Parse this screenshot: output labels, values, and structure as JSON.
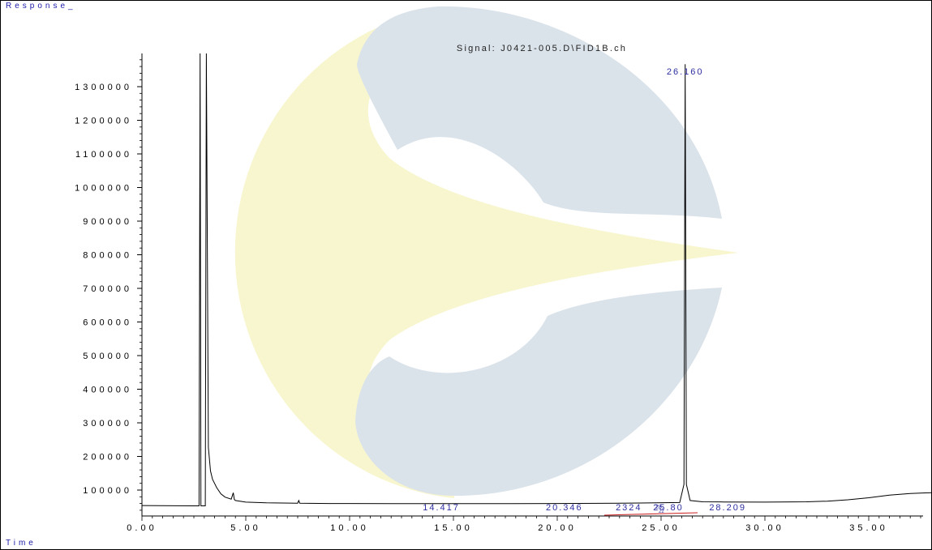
{
  "header": {
    "y_label": "Response_",
    "x_label": "Time"
  },
  "colors": {
    "frame": "#000000",
    "peak_label": "#2e2ea0",
    "baseline": "#cc2222",
    "logo_yellow": "#f8f6cf",
    "logo_blue": "#dbe3ea"
  },
  "chart_data": {
    "type": "line",
    "title": "Signal: J0421-005.D\\FID1B.ch",
    "xlabel": "Time",
    "ylabel": "Response_",
    "xlim": [
      0,
      40
    ],
    "ylim": [
      0,
      1400000
    ],
    "x_ticks": [
      "0.00",
      "5.00",
      "10.00",
      "15.00",
      "20.00",
      "25.00",
      "30.00",
      "35.00"
    ],
    "y_ticks": [
      "100000",
      "200000",
      "300000",
      "400000",
      "500000",
      "600000",
      "700000",
      "800000",
      "900000",
      "1000000",
      "1100000",
      "1200000",
      "1300000"
    ],
    "series": [
      {
        "x": [
          0.0,
          2.5,
          2.75,
          2.8,
          2.84,
          3.05,
          3.1,
          3.2,
          3.3,
          3.4,
          3.6,
          3.8,
          4.0,
          4.3,
          4.4,
          4.45,
          4.5,
          5.0,
          6.0,
          7.5,
          7.55,
          7.6,
          9.0,
          10.0,
          12.0,
          14.0,
          16.0,
          18.0,
          20.0,
          22.0,
          24.0,
          25.9,
          26.1,
          26.16,
          26.22,
          26.4,
          27.0,
          28.0,
          30.0,
          32.0,
          33.0,
          34.0,
          35.0,
          36.0,
          37.0,
          38.0,
          40.0
        ],
        "y": [
          7000,
          6000,
          6000,
          1400000,
          6000,
          6000,
          1400000,
          180000,
          110000,
          85000,
          60000,
          42000,
          32000,
          26000,
          45000,
          25000,
          22000,
          17000,
          15000,
          14000,
          22000,
          14000,
          13000,
          13000,
          12500,
          12500,
          12500,
          12500,
          13000,
          13500,
          14500,
          16000,
          70000,
          1320000,
          70000,
          22000,
          18000,
          17500,
          17000,
          18000,
          20000,
          24000,
          30000,
          38000,
          43000,
          45000,
          46000
        ]
      }
    ],
    "peak_labels": [
      {
        "text": "14.417",
        "x": 14.417
      },
      {
        "text": "20.346",
        "x": 20.346
      },
      {
        "text": "2324",
        "x": 23.45
      },
      {
        "text": "25.80",
        "x": 25.35
      },
      {
        "text": "26.160",
        "x": 26.16
      },
      {
        "text": "28.209",
        "x": 28.209
      }
    ],
    "small_marks": [
      "28.",
      "22",
      "22"
    ],
    "grid": false,
    "legend": "none"
  }
}
